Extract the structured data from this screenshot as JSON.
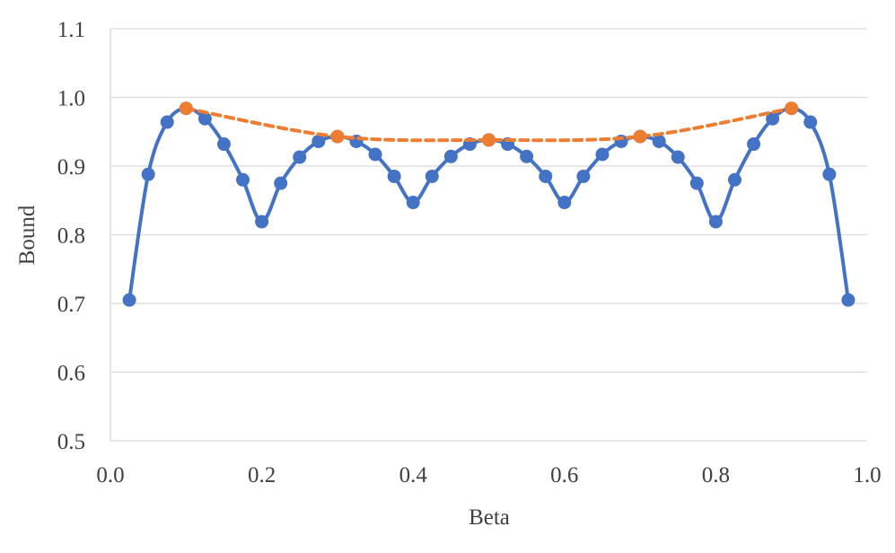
{
  "chart_data": {
    "type": "line",
    "title": "",
    "xlabel": "Beta",
    "ylabel": "Bound",
    "xlim": [
      0.0,
      1.0
    ],
    "ylim": [
      0.5,
      1.1
    ],
    "xticks": [
      "0.0",
      "0.2",
      "0.4",
      "0.6",
      "0.8",
      "1.0"
    ],
    "yticks": [
      "0.5",
      "0.6",
      "0.7",
      "0.8",
      "0.9",
      "1.0",
      "1.1"
    ],
    "grid": "horizontal",
    "legend": "none",
    "series": [
      {
        "style": "solid",
        "color": "#4472c4",
        "x": [
          0.025,
          0.05,
          0.075,
          0.1,
          0.125,
          0.15,
          0.175,
          0.2,
          0.225,
          0.25,
          0.275,
          0.3,
          0.325,
          0.35,
          0.375,
          0.4,
          0.425,
          0.45,
          0.475,
          0.5,
          0.525,
          0.55,
          0.575,
          0.6,
          0.625,
          0.65,
          0.675,
          0.7,
          0.725,
          0.75,
          0.775,
          0.8,
          0.825,
          0.85,
          0.875,
          0.9,
          0.925,
          0.95,
          0.975
        ],
        "y": [
          0.705,
          0.888,
          0.964,
          0.984,
          0.969,
          0.932,
          0.88,
          0.819,
          0.875,
          0.913,
          0.936,
          0.943,
          0.936,
          0.917,
          0.885,
          0.847,
          0.885,
          0.914,
          0.932,
          0.938,
          0.932,
          0.914,
          0.885,
          0.847,
          0.885,
          0.917,
          0.936,
          0.943,
          0.936,
          0.913,
          0.875,
          0.819,
          0.88,
          0.932,
          0.969,
          0.984,
          0.964,
          0.888,
          0.705
        ]
      },
      {
        "style": "dashed",
        "color": "#ed7d31",
        "x": [
          0.1,
          0.3,
          0.5,
          0.7,
          0.9
        ],
        "y": [
          0.984,
          0.943,
          0.938,
          0.943,
          0.984
        ]
      }
    ]
  }
}
